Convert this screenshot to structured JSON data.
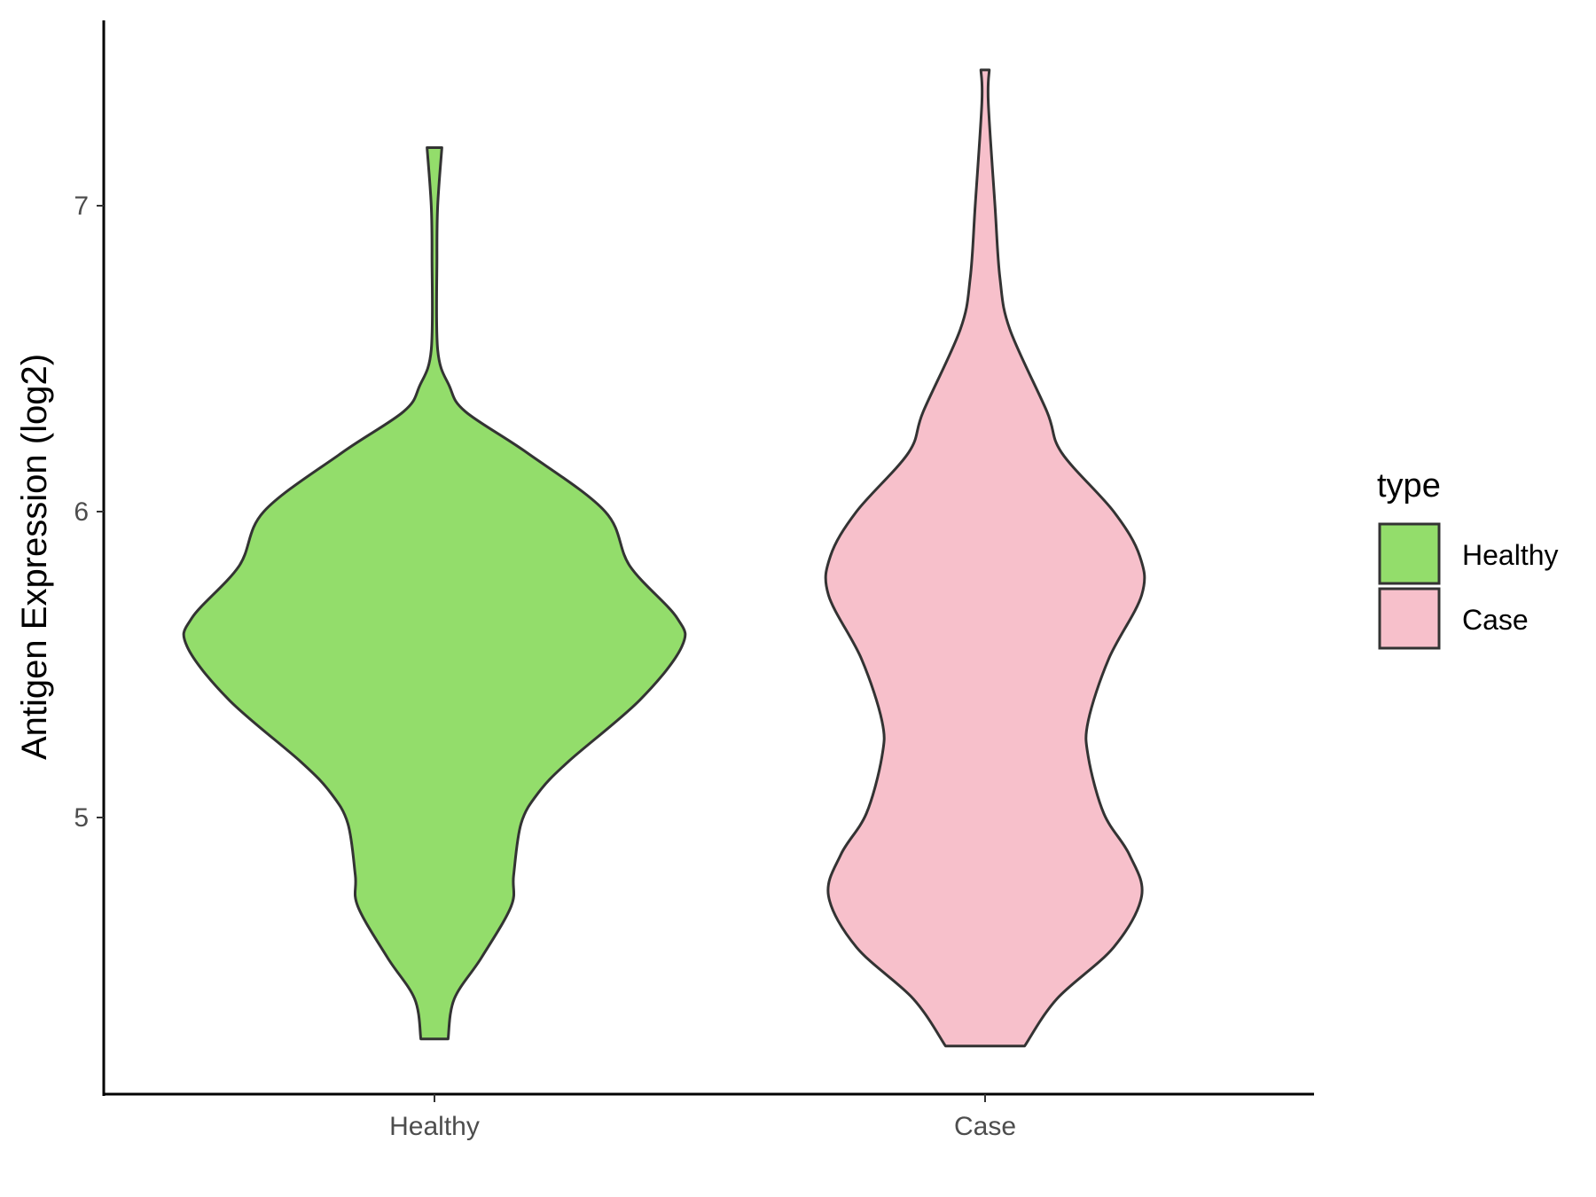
{
  "chart_data": {
    "type": "violin",
    "title": "",
    "xlabel": "",
    "ylabel": "Antigen Expression (log2)",
    "categories": [
      "Healthy",
      "Case"
    ],
    "ylim": [
      4.15,
      7.55
    ],
    "yticks": [
      5,
      6,
      7
    ],
    "grid": false,
    "legend": {
      "title": "type",
      "placement": "right",
      "entries": [
        {
          "label": "Healthy",
          "color": "#93DD6B"
        },
        {
          "label": "Case",
          "color": "#F7C0CB"
        }
      ]
    },
    "outline_color": "#333333",
    "series": [
      {
        "name": "Healthy",
        "color": "#93DD6B",
        "min": 4.276,
        "max": 7.19,
        "density_profile": [
          [
            7.19,
            0.03
          ],
          [
            7.0,
            0.013
          ],
          [
            6.832,
            0.01
          ],
          [
            6.529,
            0.013
          ],
          [
            6.411,
            0.06
          ],
          [
            6.327,
            0.125
          ],
          [
            6.192,
            0.375
          ],
          [
            6.0,
            0.69
          ],
          [
            5.822,
            0.79
          ],
          [
            5.653,
            0.98
          ],
          [
            5.559,
            1.0
          ],
          [
            5.384,
            0.83
          ],
          [
            5.182,
            0.54
          ],
          [
            5.081,
            0.42
          ],
          [
            4.98,
            0.35
          ],
          [
            4.811,
            0.32
          ],
          [
            4.71,
            0.31
          ],
          [
            4.542,
            0.19
          ],
          [
            4.407,
            0.08
          ],
          [
            4.276,
            0.055
          ]
        ]
      },
      {
        "name": "Case",
        "color": "#F7C0CB",
        "min": 4.253,
        "max": 7.444,
        "density_profile": [
          [
            7.444,
            0.017
          ],
          [
            7.337,
            0.013
          ],
          [
            7.0,
            0.04
          ],
          [
            6.764,
            0.06
          ],
          [
            6.596,
            0.1
          ],
          [
            6.327,
            0.25
          ],
          [
            6.192,
            0.31
          ],
          [
            6.0,
            0.52
          ],
          [
            5.855,
            0.625
          ],
          [
            5.727,
            0.633
          ],
          [
            5.519,
            0.5
          ],
          [
            5.316,
            0.417
          ],
          [
            5.199,
            0.417
          ],
          [
            5.013,
            0.48
          ],
          [
            4.879,
            0.583
          ],
          [
            4.744,
            0.633
          ],
          [
            4.576,
            0.52
          ],
          [
            4.407,
            0.29
          ],
          [
            4.253,
            0.16
          ]
        ]
      }
    ]
  }
}
